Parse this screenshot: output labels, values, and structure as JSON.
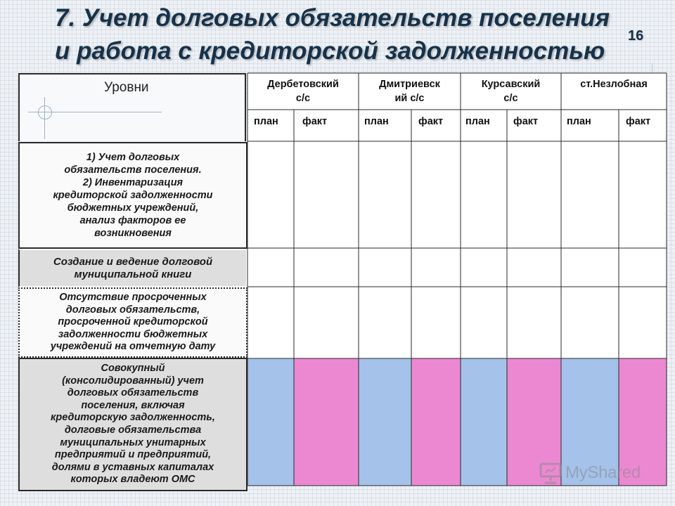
{
  "slide": {
    "title_line1": "7. Учет долговых обязательств поселения",
    "title_line2": "и работа с кредиторской задолженностью",
    "number": "16"
  },
  "table": {
    "levels_label": "Уровни",
    "settlements": [
      {
        "line1": "Дербетовский",
        "line2": "с/с"
      },
      {
        "line1": "Дмитриевск",
        "line2": "ий с/с"
      },
      {
        "line1": "Курсавский",
        "line2": "с/с"
      },
      {
        "line1": "ст.Незлобная",
        "line2": ""
      }
    ],
    "plan_label": "план",
    "fact_label": "факт",
    "rows": [
      {
        "lines": [
          "1) Учет долговых",
          "обязательств поселения.",
          "2) Инвентаризация",
          "кредиторской задолженности",
          "бюджетных учреждений,",
          "анализ факторов ее",
          "возникновения"
        ]
      },
      {
        "lines": [
          "Создание и ведение долговой",
          "муниципальной книги"
        ]
      },
      {
        "lines": [
          "Отсутствие просроченных",
          "долговых обязательств,",
          "просроченной кредиторской",
          "задолженности бюджетных",
          "учреждений на отчетную дату"
        ]
      },
      {
        "lines": [
          "Совокупный",
          "(консолидированный) учет",
          "долговых обязательств",
          "поселения, включая",
          "кредиторскую задолженность,",
          "долговые обязательства",
          "муниципальных унитарных",
          "предприятий и предприятий,",
          "долями в уставных капиталах",
          "которых владеют ОМС"
        ]
      }
    ],
    "colors": {
      "plan_fill": "#a4c2ea",
      "fact_fill": "#ec88d2"
    }
  },
  "watermark": {
    "text": "MyShared",
    "icon": "presentation-board-icon"
  }
}
